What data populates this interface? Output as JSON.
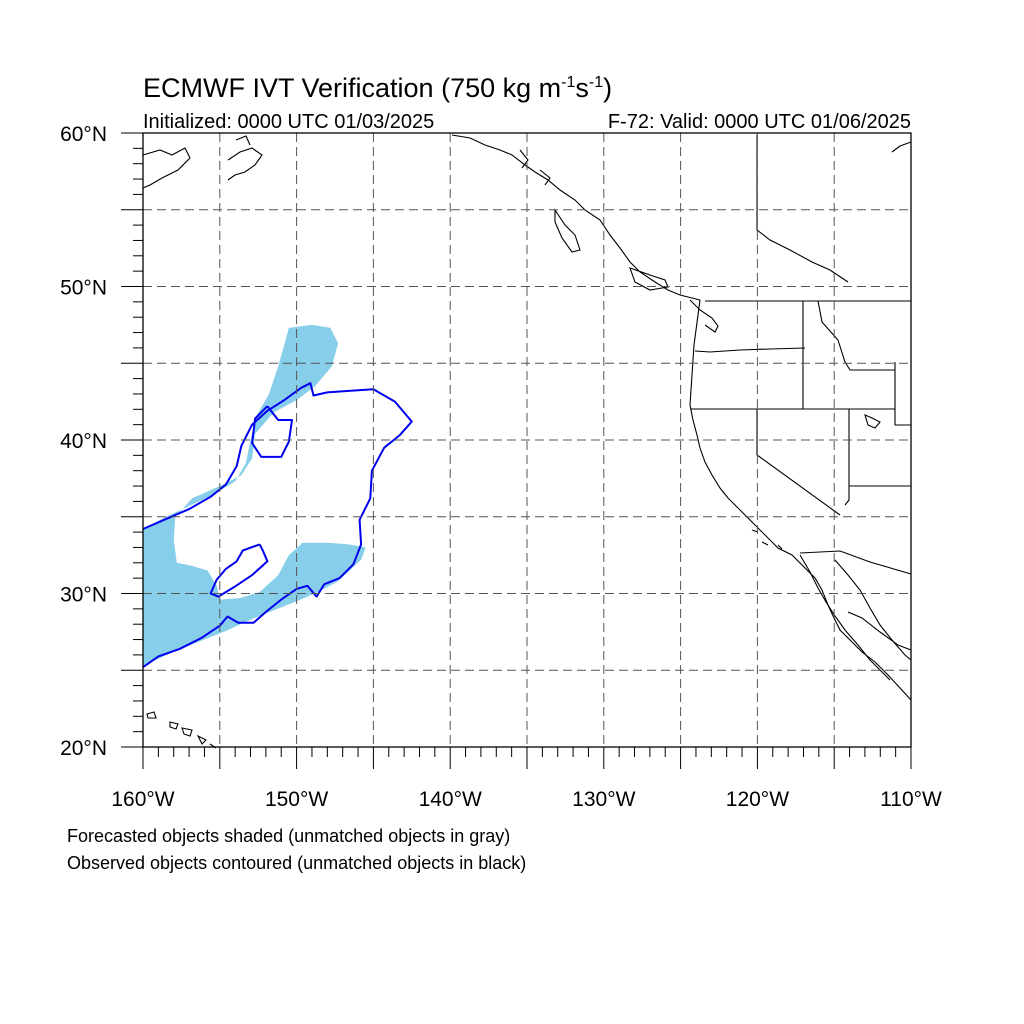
{
  "title": {
    "main": "ECMWF IVT Verification",
    "threshold_open": "(750 kg m",
    "exp1": "-1",
    "mid": "s",
    "exp2": "-1",
    "close": ")"
  },
  "subtitle_left": "Initialized: 0000 UTC 01/03/2025",
  "subtitle_right": "F-72: Valid: 0000 UTC 01/06/2025",
  "map": {
    "lon_range": [
      -160,
      -110
    ],
    "lat_range": [
      20,
      60
    ],
    "grid_lons": [
      -155,
      -150,
      -145,
      -140,
      -135,
      -130,
      -125,
      -120,
      -115
    ],
    "grid_lats": [
      25,
      30,
      35,
      40,
      45,
      50,
      55
    ],
    "lon_ticks": [
      {
        "lon": -160,
        "label": "160°W"
      },
      {
        "lon": -150,
        "label": "150°W"
      },
      {
        "lon": -140,
        "label": "140°W"
      },
      {
        "lon": -130,
        "label": "130°W"
      },
      {
        "lon": -120,
        "label": "120°W"
      },
      {
        "lon": -110,
        "label": "110°W"
      }
    ],
    "lat_ticks": [
      {
        "lat": 20,
        "label": "20°N"
      },
      {
        "lat": 30,
        "label": "30°N"
      },
      {
        "lat": 40,
        "label": "40°N"
      },
      {
        "lat": 50,
        "label": "50°N"
      },
      {
        "lat": 60,
        "label": "60°N"
      }
    ],
    "colors": {
      "forecast_fill": "#87ceeb",
      "observed_contour": "#0000ee",
      "coastline": "#000000",
      "grid": "#555555"
    },
    "forecast_objects": [
      [
        [
          -160,
          34.2
        ],
        [
          -158.5,
          35
        ],
        [
          -157,
          35.7
        ],
        [
          -155.5,
          36.4
        ],
        [
          -154,
          37.3
        ],
        [
          -153.3,
          38.5
        ],
        [
          -153,
          40
        ],
        [
          -152.6,
          41.6
        ],
        [
          -151.8,
          43
        ],
        [
          -151.2,
          44.8
        ],
        [
          -150.8,
          46.2
        ],
        [
          -150.5,
          47.3
        ],
        [
          -149,
          47.5
        ],
        [
          -147.8,
          47.3
        ],
        [
          -147.3,
          46.3
        ],
        [
          -147.7,
          44.8
        ],
        [
          -148.8,
          43.5
        ],
        [
          -150,
          42.6
        ],
        [
          -151.5,
          41.8
        ],
        [
          -152.7,
          40.4
        ],
        [
          -152.9,
          38.8
        ],
        [
          -153.6,
          37.7
        ],
        [
          -155,
          37
        ],
        [
          -156.8,
          36.2
        ],
        [
          -157.9,
          35
        ],
        [
          -158,
          33.5
        ],
        [
          -157.8,
          32
        ],
        [
          -156.8,
          31.8
        ],
        [
          -155.8,
          31.5
        ],
        [
          -155.2,
          30.5
        ],
        [
          -155,
          29.6
        ],
        [
          -153.7,
          29.7
        ],
        [
          -152.4,
          30.1
        ],
        [
          -151.2,
          31.2
        ],
        [
          -150.5,
          32.5
        ],
        [
          -149.6,
          33.3
        ],
        [
          -148,
          33.3
        ],
        [
          -146.6,
          33.2
        ],
        [
          -145.5,
          33
        ],
        [
          -145.8,
          32.2
        ],
        [
          -147.3,
          30.8
        ],
        [
          -148.6,
          30.1
        ],
        [
          -150,
          29.5
        ],
        [
          -151.5,
          28.9
        ],
        [
          -153,
          28.3
        ],
        [
          -154.5,
          27.6
        ],
        [
          -156,
          27
        ],
        [
          -158,
          26.2
        ],
        [
          -160,
          25.3
        ]
      ]
    ],
    "observed_objects": [
      [
        [
          -160,
          34.2
        ],
        [
          -158.4,
          34.9
        ],
        [
          -157,
          35.5
        ],
        [
          -155.6,
          36.3
        ],
        [
          -154.6,
          37.1
        ],
        [
          -153.9,
          38.3
        ],
        [
          -153.6,
          39.6
        ],
        [
          -152.9,
          41
        ],
        [
          -151.9,
          41.9
        ],
        [
          -150.8,
          42.6
        ],
        [
          -149.7,
          43.4
        ],
        [
          -149.1,
          43.7
        ],
        [
          -148.9,
          42.9
        ],
        [
          -148,
          43.1
        ],
        [
          -146.6,
          43.2
        ],
        [
          -145,
          43.3
        ],
        [
          -143.6,
          42.5
        ],
        [
          -142.5,
          41.2
        ],
        [
          -143.3,
          40.3
        ],
        [
          -144.3,
          39.5
        ],
        [
          -145.1,
          38
        ],
        [
          -145.2,
          36.2
        ],
        [
          -145.9,
          34.8
        ],
        [
          -145.8,
          33.2
        ],
        [
          -146.3,
          31.9
        ],
        [
          -147.2,
          31
        ],
        [
          -148.2,
          30.6
        ],
        [
          -148.7,
          29.8
        ],
        [
          -149.3,
          30.5
        ],
        [
          -150,
          30.3
        ],
        [
          -151,
          29.6
        ],
        [
          -152,
          28.8
        ],
        [
          -152.8,
          28.1
        ],
        [
          -153.8,
          28.1
        ],
        [
          -154.5,
          28.5
        ],
        [
          -155,
          27.9
        ],
        [
          -156.2,
          27.1
        ],
        [
          -157.6,
          26.4
        ],
        [
          -159,
          25.9
        ],
        [
          -160,
          25.2
        ]
      ],
      [
        [
          -151.9,
          42.2
        ],
        [
          -152.7,
          41.4
        ],
        [
          -152.9,
          39.8
        ],
        [
          -152.3,
          38.9
        ],
        [
          -151,
          38.9
        ],
        [
          -150.5,
          39.9
        ],
        [
          -150.3,
          41.3
        ],
        [
          -151.2,
          41.3
        ],
        [
          -151.9,
          42.2
        ]
      ],
      [
        [
          -152.4,
          33.2
        ],
        [
          -153.5,
          32.8
        ],
        [
          -153.9,
          32.1
        ],
        [
          -154.6,
          31.6
        ],
        [
          -155.2,
          30.9
        ],
        [
          -155.6,
          30
        ],
        [
          -155.1,
          29.8
        ],
        [
          -154.1,
          30.4
        ],
        [
          -152.9,
          31.2
        ],
        [
          -151.9,
          32.1
        ],
        [
          -152.2,
          32.8
        ],
        [
          -152.4,
          33.2
        ]
      ]
    ]
  }
}
